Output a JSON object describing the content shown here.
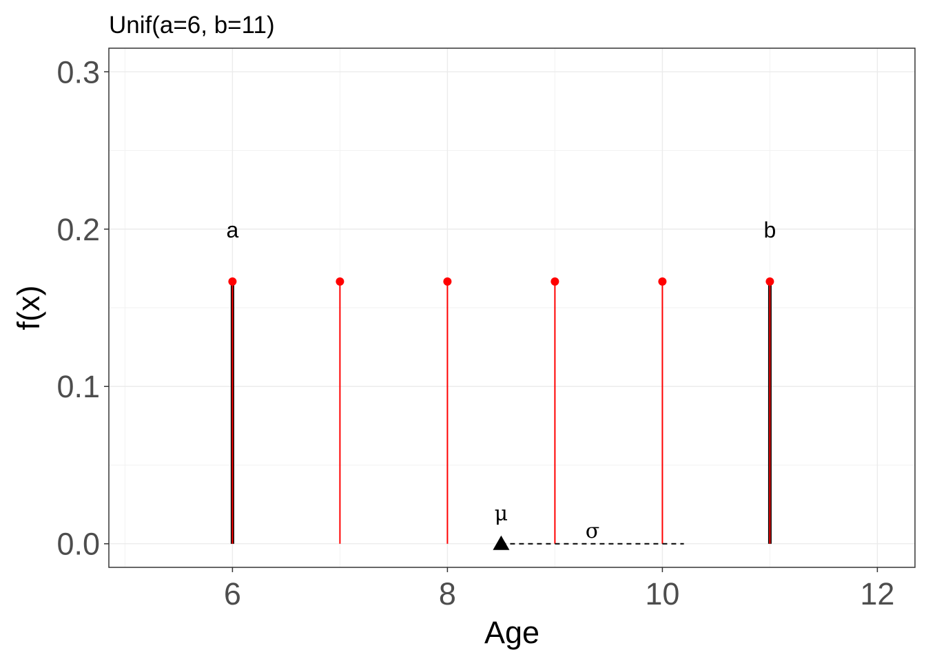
{
  "chart_data": {
    "type": "line",
    "title": "Unif(a=6, b=11)",
    "xlabel": "Age",
    "ylabel": "f(x)",
    "xlim": [
      4.85,
      12.35
    ],
    "ylim": [
      -0.015,
      0.315
    ],
    "x_ticks": [
      6,
      8,
      10,
      12
    ],
    "x_tick_labels": [
      "6",
      "8",
      "10",
      "12"
    ],
    "y_ticks": [
      0.0,
      0.1,
      0.2,
      0.3
    ],
    "y_tick_labels": [
      "0.0",
      "0.1",
      "0.2",
      "0.3"
    ],
    "grid": true,
    "series": [
      {
        "kind": "endpoint-spikes",
        "color": "#000000",
        "x": [
          6,
          11
        ],
        "y": [
          0.1667,
          0.1667
        ]
      },
      {
        "kind": "pmf-spikes",
        "color": "#ff0000",
        "x": [
          6,
          7,
          8,
          9,
          10,
          11
        ],
        "y": [
          0.1667,
          0.1667,
          0.1667,
          0.1667,
          0.1667,
          0.1667
        ]
      }
    ],
    "annotations": [
      {
        "text": "a",
        "x": 6,
        "y": 0.2,
        "style": "text"
      },
      {
        "text": "b",
        "x": 11,
        "y": 0.2,
        "style": "text"
      },
      {
        "text": "μ",
        "x": 8.5,
        "y": 0.02,
        "style": "greek"
      },
      {
        "text": "σ",
        "x": 9.35,
        "y": 0.009,
        "style": "greek"
      }
    ],
    "mean": {
      "x": 8.5,
      "y": 0,
      "marker": "triangle"
    },
    "sd_segment": {
      "x": [
        8.5,
        10.2
      ],
      "y": 0,
      "style": "dashed"
    }
  }
}
